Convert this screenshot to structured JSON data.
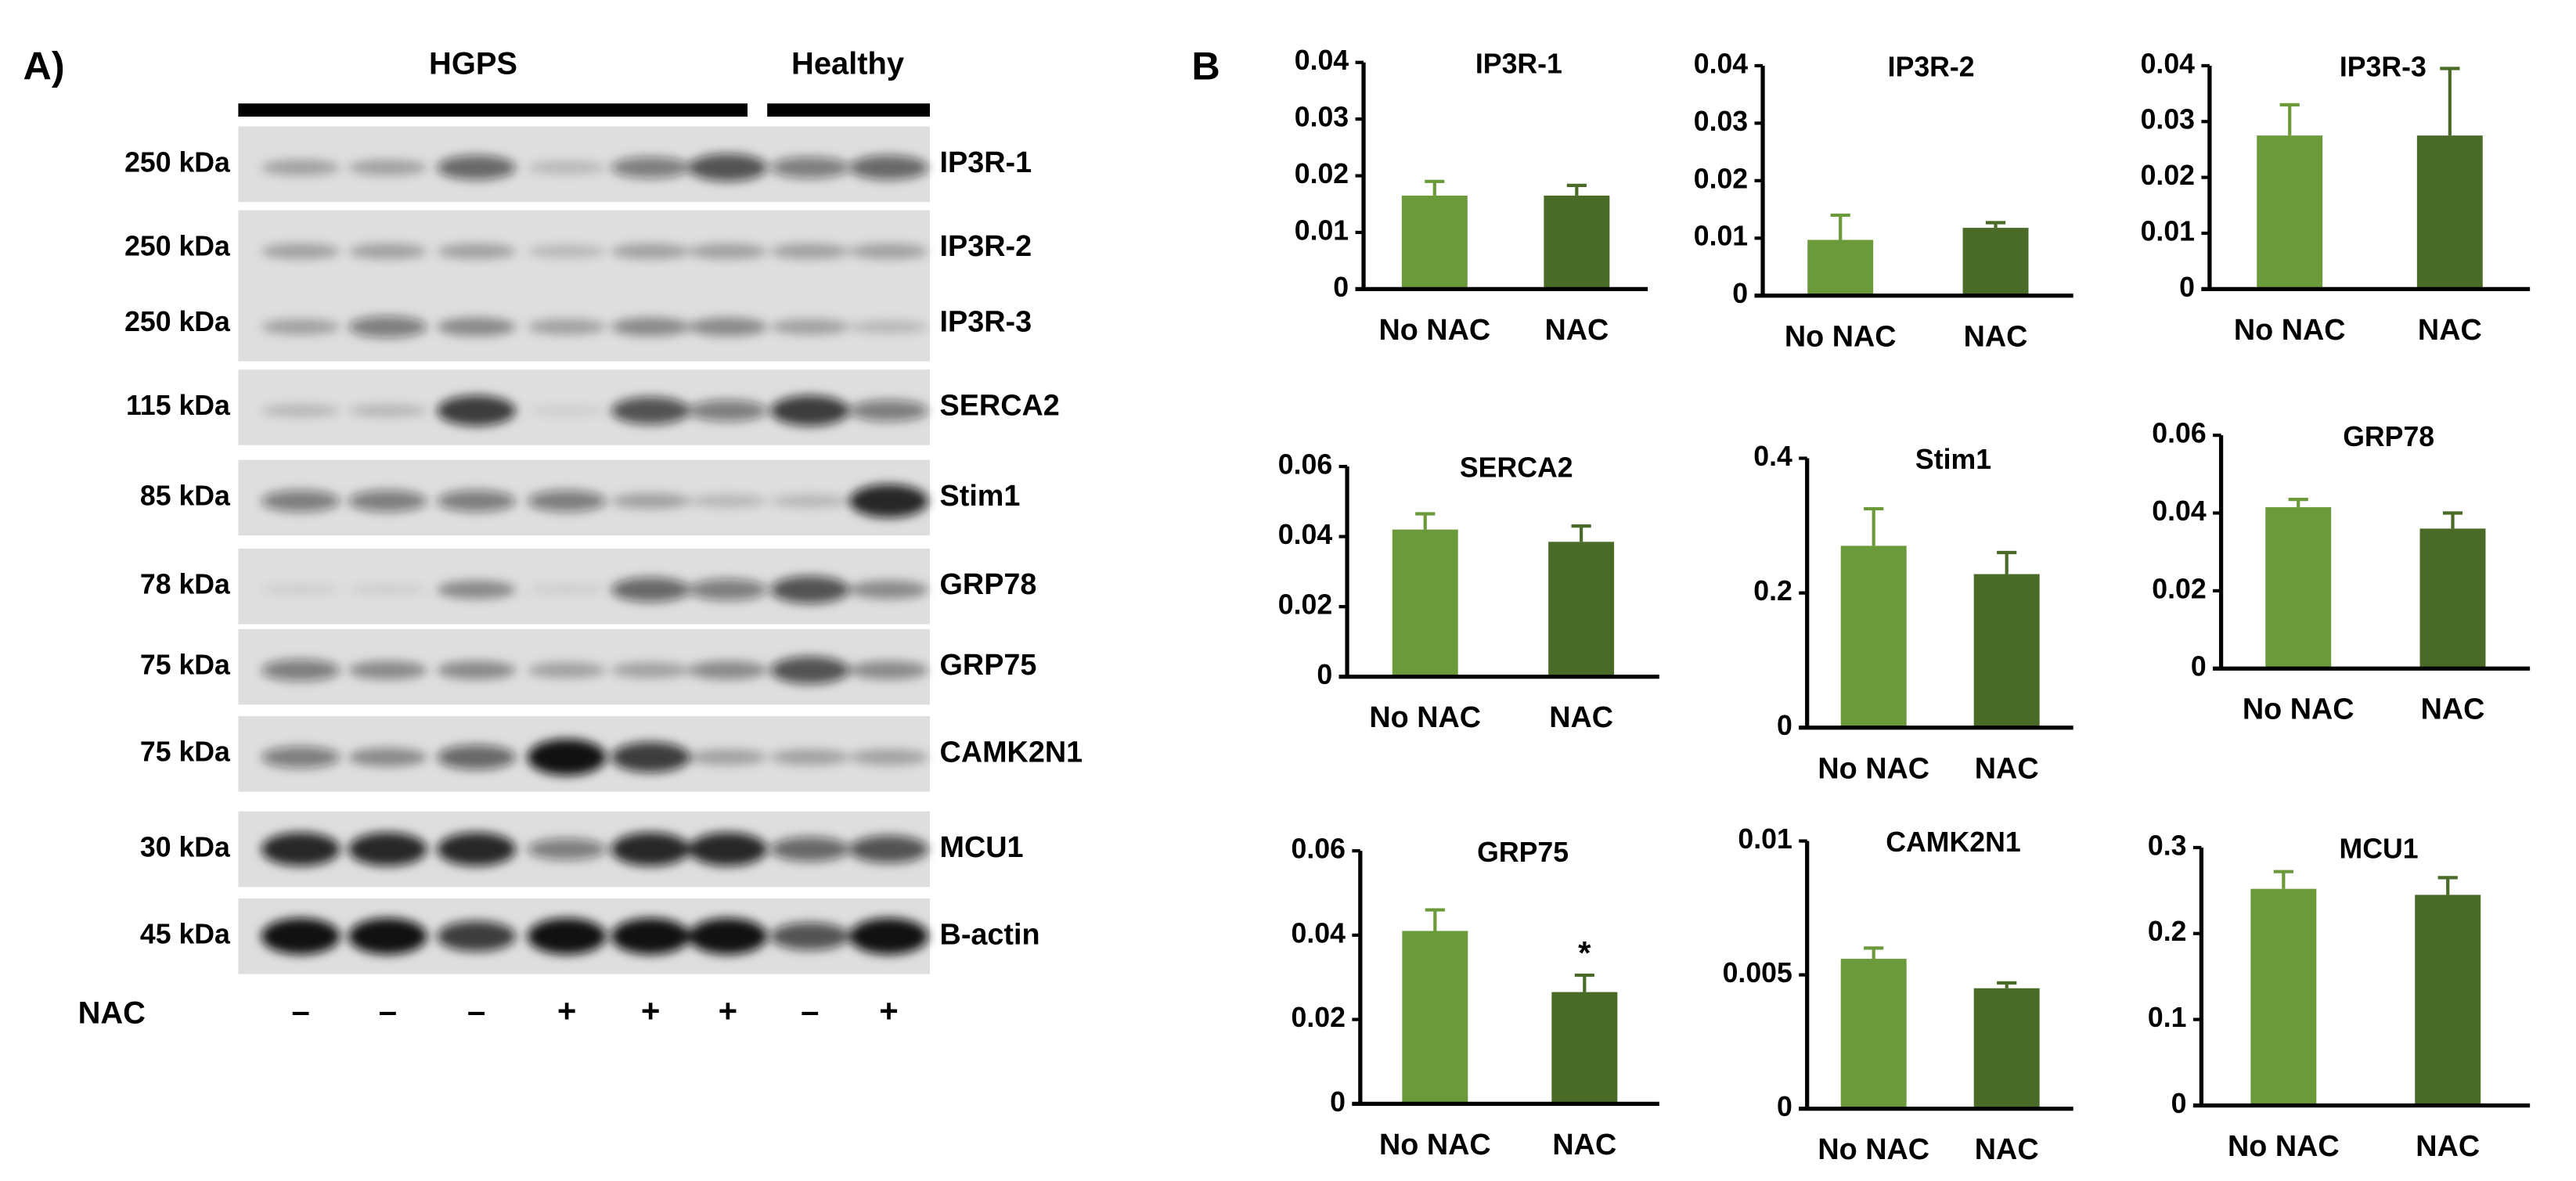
{
  "panel_a": {
    "label": "A)",
    "groups": [
      "HGPS",
      "Healthy"
    ],
    "rows": [
      {
        "kda": "250 kDa",
        "protein": "IP3R-1"
      },
      {
        "kda": "250 kDa",
        "protein": "IP3R-2"
      },
      {
        "kda": "250 kDa",
        "protein": "IP3R-3"
      },
      {
        "kda": "115 kDa",
        "protein": "SERCA2"
      },
      {
        "kda": "85 kDa",
        "protein": "Stim1"
      },
      {
        "kda": "78 kDa",
        "protein": "GRP78"
      },
      {
        "kda": "75 kDa",
        "protein": "GRP75"
      },
      {
        "kda": "75 kDa",
        "protein": "CAMK2N1"
      },
      {
        "kda": "30 kDa",
        "protein": "MCU1"
      },
      {
        "kda": "45 kDa",
        "protein": "B-actin"
      }
    ],
    "treatment_label": "NAC",
    "treatment": [
      "–",
      "–",
      "–",
      "+",
      "+",
      "+",
      "–",
      "+"
    ]
  },
  "panel_b_label": "B",
  "chart_data": [
    {
      "type": "bar",
      "title": "IP3R-1",
      "categories": [
        "No NAC",
        "NAC"
      ],
      "values": [
        0.0165,
        0.0165
      ],
      "errors": [
        0.0025,
        0.0018
      ],
      "colors": [
        "#6b9a3a",
        "#4a6b28"
      ],
      "ylim": [
        0,
        0.04
      ],
      "yticks": [
        0,
        0.01,
        0.02,
        0.03,
        0.04
      ]
    },
    {
      "type": "bar",
      "title": "IP3R-2",
      "categories": [
        "No NAC",
        "NAC"
      ],
      "values": [
        0.0097,
        0.0118
      ],
      "errors": [
        0.0043,
        0.0009
      ],
      "colors": [
        "#6b9a3a",
        "#4a6b28"
      ],
      "ylim": [
        0,
        0.04
      ],
      "yticks": [
        0,
        0.01,
        0.02,
        0.03,
        0.04
      ]
    },
    {
      "type": "bar",
      "title": "IP3R-3",
      "categories": [
        "No NAC",
        "NAC"
      ],
      "values": [
        0.0275,
        0.0275
      ],
      "errors": [
        0.0055,
        0.012
      ],
      "colors": [
        "#6b9a3a",
        "#4a6b28"
      ],
      "ylim": [
        0,
        0.04
      ],
      "yticks": [
        0,
        0.01,
        0.02,
        0.03,
        0.04
      ]
    },
    {
      "type": "bar",
      "title": "SERCA2",
      "categories": [
        "No NAC",
        "NAC"
      ],
      "values": [
        0.042,
        0.0385
      ],
      "errors": [
        0.0045,
        0.0045
      ],
      "colors": [
        "#6b9a3a",
        "#4a6b28"
      ],
      "ylim": [
        0,
        0.06
      ],
      "yticks": [
        0,
        0.02,
        0.04,
        0.06
      ]
    },
    {
      "type": "bar",
      "title": "Stim1",
      "categories": [
        "No NAC",
        "NAC"
      ],
      "values": [
        0.27,
        0.228
      ],
      "errors": [
        0.055,
        0.032
      ],
      "colors": [
        "#6b9a3a",
        "#4a6b28"
      ],
      "ylim": [
        0,
        0.4
      ],
      "yticks": [
        0,
        0.2,
        0.4
      ]
    },
    {
      "type": "bar",
      "title": "GRP78",
      "categories": [
        "No NAC",
        "NAC"
      ],
      "values": [
        0.0415,
        0.036
      ],
      "errors": [
        0.002,
        0.004
      ],
      "colors": [
        "#6b9a3a",
        "#4a6b28"
      ],
      "ylim": [
        0,
        0.06
      ],
      "yticks": [
        0,
        0.02,
        0.04,
        0.06
      ]
    },
    {
      "type": "bar",
      "title": "GRP75",
      "categories": [
        "No NAC",
        "NAC"
      ],
      "values": [
        0.041,
        0.0265
      ],
      "errors": [
        0.005,
        0.004
      ],
      "colors": [
        "#6b9a3a",
        "#4a6b28"
      ],
      "significance": [
        null,
        "*"
      ],
      "ylim": [
        0,
        0.06
      ],
      "yticks": [
        0,
        0.02,
        0.04,
        0.06
      ]
    },
    {
      "type": "bar",
      "title": "CAMK2N1",
      "categories": [
        "No NAC",
        "NAC"
      ],
      "values": [
        0.0056,
        0.0045
      ],
      "errors": [
        0.0004,
        0.0002
      ],
      "colors": [
        "#6b9a3a",
        "#4a6b28"
      ],
      "ylim": [
        0,
        0.01
      ],
      "yticks": [
        0,
        0.005,
        0.01
      ]
    },
    {
      "type": "bar",
      "title": "MCU1",
      "categories": [
        "No NAC",
        "NAC"
      ],
      "values": [
        0.252,
        0.245
      ],
      "errors": [
        0.02,
        0.02
      ],
      "colors": [
        "#6b9a3a",
        "#4a6b28"
      ],
      "ylim": [
        0,
        0.3
      ],
      "yticks": [
        0,
        0.1,
        0.2,
        0.3
      ]
    }
  ]
}
